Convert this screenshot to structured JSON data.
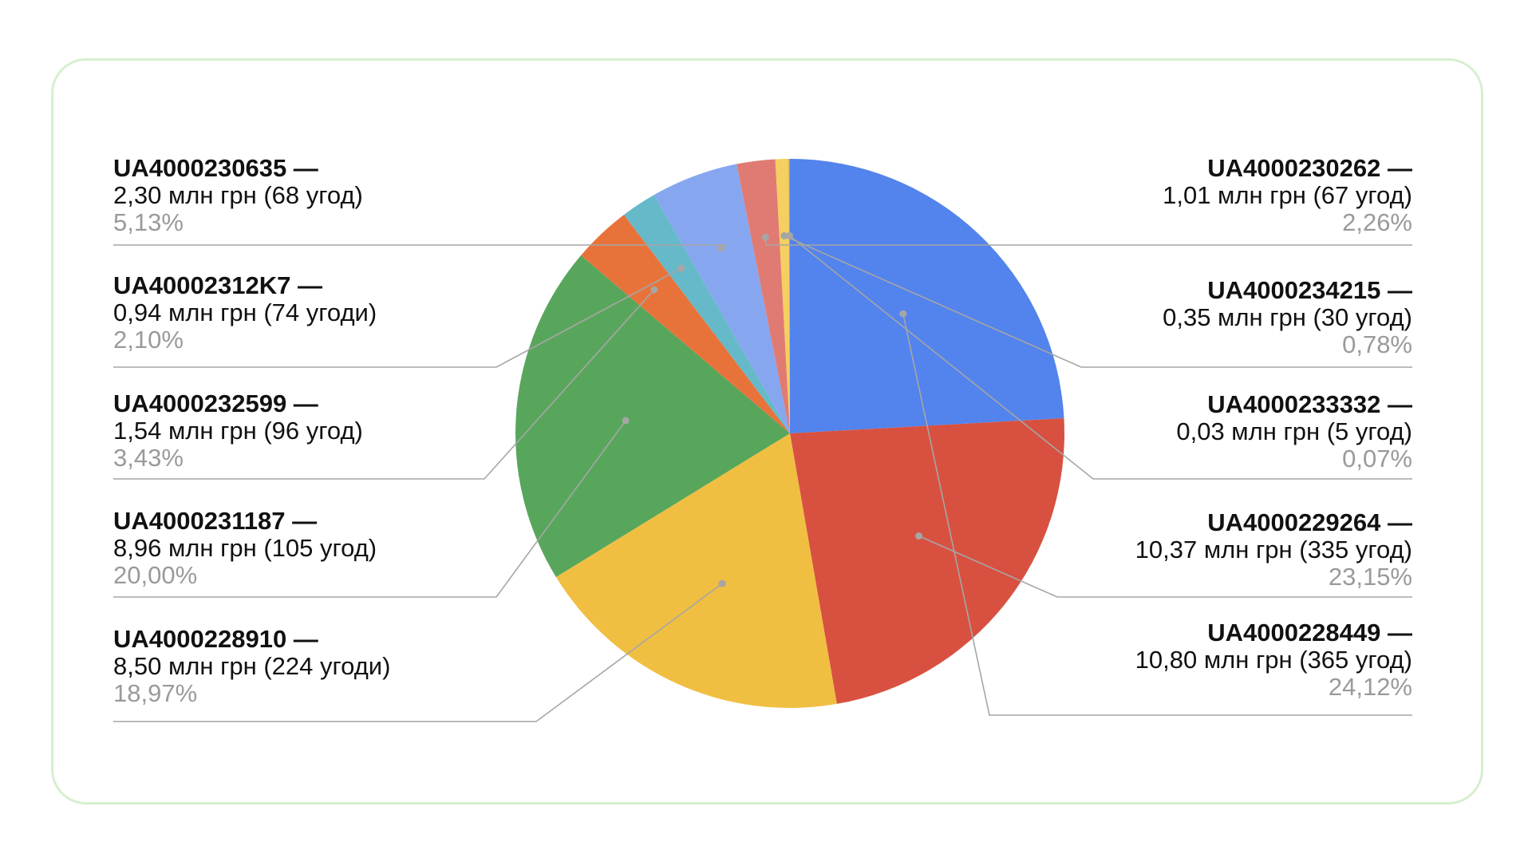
{
  "chart_data": {
    "type": "pie",
    "title": "",
    "slices": [
      {
        "code": "UA4000228449 —",
        "amount": "10,80 млн грн (365 угод)",
        "percent_label": "24,12%",
        "value": 24.12,
        "color": "#5383ec"
      },
      {
        "code": "UA4000229264 —",
        "amount": "10,37 млн грн (335 угод)",
        "percent_label": "23,15%",
        "value": 23.15,
        "color": "#d85140"
      },
      {
        "code": "UA4000228910 —",
        "amount": "8,50 млн грн (224 угоди)",
        "percent_label": "18,97%",
        "value": 18.97,
        "color": "#f0bf42"
      },
      {
        "code": "UA4000231187 —",
        "amount": "8,96 млн грн (105 угод)",
        "percent_label": "20,00%",
        "value": 20.0,
        "color": "#58a65c"
      },
      {
        "code": "UA4000232599 —",
        "amount": "1,54 млн грн (96 угод)",
        "percent_label": "3,43%",
        "value": 3.43,
        "color": "#e8733a"
      },
      {
        "code": "UA40002312K7 —",
        "amount": "0,94 млн грн (74 угоди)",
        "percent_label": "2,10%",
        "value": 2.1,
        "color": "#66b9c9"
      },
      {
        "code": "UA4000230635 —",
        "amount": "2,30 млн грн (68 угод)",
        "percent_label": "5,13%",
        "value": 5.13,
        "color": "#87a6f0"
      },
      {
        "code": "UA4000230262 —",
        "amount": "1,01 млн грн (67 угод)",
        "percent_label": "2,26%",
        "value": 2.26,
        "color": "#e07b73"
      },
      {
        "code": "UA4000234215 —",
        "amount": "0,35 млн грн (30 угод)",
        "percent_label": "0,78%",
        "value": 0.78,
        "color": "#f5cf5f"
      },
      {
        "code": "UA4000233332 —",
        "amount": "0,03 млн грн (5 угод)",
        "percent_label": "0,07%",
        "value": 0.07,
        "color": "#b9a23a"
      }
    ]
  }
}
